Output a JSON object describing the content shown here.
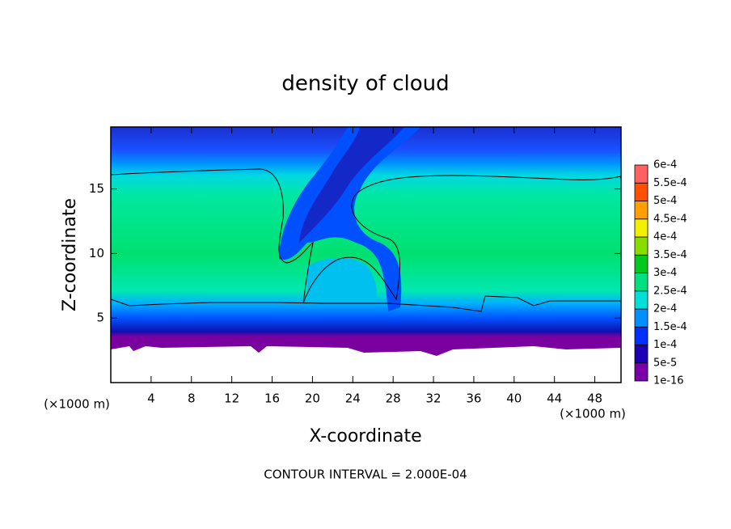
{
  "chart_data": {
    "type": "contour",
    "title": "density of cloud",
    "x_label": "X-coordinate",
    "y_label": "Z-coordinate",
    "x_unit": "(×1000 m)",
    "y_unit": "(×1000 m)",
    "footer": "CONTOUR INTERVAL = 2.000E-04",
    "xlim": [
      0,
      50.6
    ],
    "ylim": [
      0,
      19.8
    ],
    "xticks": [
      4,
      8,
      12,
      16,
      20,
      24,
      28,
      32,
      36,
      40,
      44,
      48
    ],
    "yticks": [
      5,
      10,
      15
    ],
    "colorbar": {
      "levels": [
        1e-16,
        {
          "value": 5e-05,
          "label": "5e-5"
        },
        {
          "value": 0.0001,
          "label": "1e-4"
        },
        {
          "value": 0.00015,
          "label": "1.5e-4"
        },
        {
          "value": 0.0002,
          "label": "2e-4"
        },
        {
          "value": 0.00025,
          "label": "2.5e-4"
        },
        {
          "value": 0.0003,
          "label": "3e-4"
        },
        {
          "value": 0.00035,
          "label": "3.5e-4"
        },
        {
          "value": 0.0004,
          "label": "4e-4"
        },
        {
          "value": 0.00045,
          "label": "4.5e-4"
        },
        {
          "value": 0.0005,
          "label": "5e-4"
        },
        {
          "value": 0.00055,
          "label": "5.5e-4"
        },
        {
          "value": 0.0006,
          "label": "6e-4"
        }
      ],
      "colors": [
        "#7a00a8",
        "#1e00b4",
        "#0030ff",
        "#0090ff",
        "#00e0d8",
        "#00e080",
        "#00c820",
        "#88dc00",
        "#f0f000",
        "#ffa000",
        "#ff5000",
        "#ff6060"
      ]
    }
  }
}
